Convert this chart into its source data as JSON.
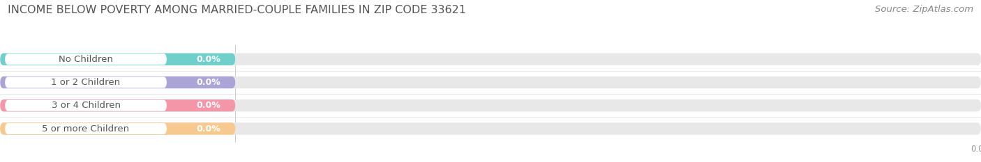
{
  "title": "INCOME BELOW POVERTY AMONG MARRIED-COUPLE FAMILIES IN ZIP CODE 33621",
  "source": "Source: ZipAtlas.com",
  "categories": [
    "No Children",
    "1 or 2 Children",
    "3 or 4 Children",
    "5 or more Children"
  ],
  "values": [
    0.0,
    0.0,
    0.0,
    0.0
  ],
  "bar_colors": [
    "#6ecfcb",
    "#aba4d6",
    "#f595a8",
    "#f8c98e"
  ],
  "background_color": "#ffffff",
  "bar_bg_color": "#e8e8e8",
  "label_text_color": "#555555",
  "value_text_color": "#ffffff",
  "tick_text_color": "#999999",
  "title_color": "#555555",
  "source_color": "#888888",
  "title_fontsize": 11.5,
  "label_fontsize": 9.5,
  "value_fontsize": 9,
  "source_fontsize": 9.5,
  "fig_width": 14.06,
  "fig_height": 2.33
}
